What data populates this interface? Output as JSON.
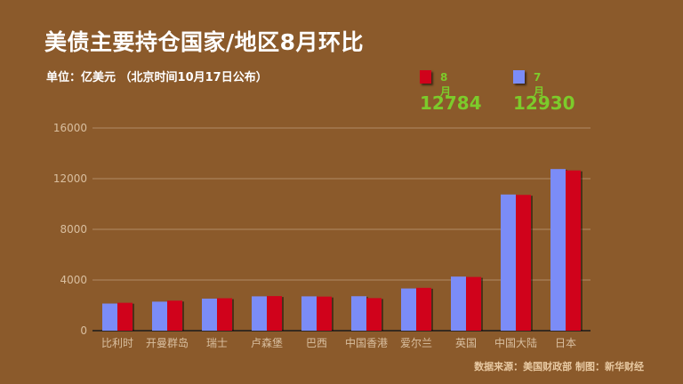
{
  "title": "美债主要持仓国家/地区8月环比",
  "subtitle": "单位：亿美元 （北京时间10月17日公布）",
  "legend": [
    {
      "label": "8月",
      "total": "12784",
      "color": "#D0021B",
      "label_color": "#7CCB2B",
      "total_color": "#7CCB2B"
    },
    {
      "label": "7月",
      "total": "12930",
      "color": "#7B8CF7",
      "label_color": "#7CCB2B",
      "total_color": "#7CCB2B"
    }
  ],
  "source": "数据来源：美国财政部   制图：新华财经",
  "chart_data": {
    "type": "bar",
    "categories": [
      "比利时",
      "开曼群岛",
      "瑞士",
      "卢森堡",
      "巴西",
      "中国香港",
      "爱尔兰",
      "英国",
      "中国大陆",
      "日本"
    ],
    "series": [
      {
        "name": "7月",
        "color": "#7B8CF7",
        "values": [
          2140,
          2290,
          2530,
          2710,
          2710,
          2720,
          3330,
          4270,
          10750,
          12760
        ]
      },
      {
        "name": "8月",
        "color": "#D0021B",
        "values": [
          2200,
          2370,
          2560,
          2730,
          2690,
          2570,
          3380,
          4240,
          10720,
          12650
        ]
      }
    ],
    "ylim": [
      0,
      16000
    ],
    "yticks": [
      0,
      4000,
      8000,
      12000,
      16000
    ],
    "grid": true,
    "legend_position": "top-right"
  }
}
